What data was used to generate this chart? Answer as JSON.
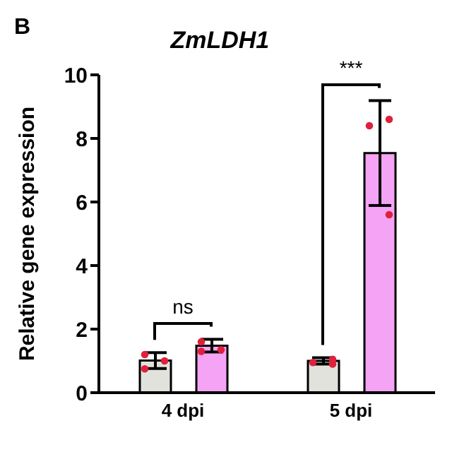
{
  "chart_data": {
    "type": "bar",
    "title": "ZmLDH1",
    "ylabel": "Relative gene expression",
    "categories": [
      "4 dpi",
      "5 dpi"
    ],
    "series": [
      {
        "color": "#e2e2dc",
        "values": [
          1.01,
          1.0
        ],
        "errors": [
          0.25,
          0.1
        ]
      },
      {
        "color": "#f5a3f5",
        "values": [
          1.48,
          7.54
        ],
        "errors": [
          0.2,
          1.65
        ]
      },
      {
        "type": "scatter",
        "color": "#e0203c",
        "marker": "circle",
        "x": [
          "4 dpi",
          "4 dpi",
          "4 dpi",
          "5 dpi",
          "5 dpi",
          "5 dpi"
        ],
        "values": [
          1.2,
          1.0,
          0.75,
          1.05,
          0.95,
          0.9
        ]
      },
      {
        "type": "scatter",
        "color": "#e0203c",
        "marker": "circle",
        "x": [
          "4 dpi",
          "4 dpi",
          "4 dpi",
          "5 dpi",
          "5 dpi",
          "5 dpi"
        ],
        "values": [
          1.6,
          1.35,
          1.3,
          8.6,
          8.4,
          5.6
        ]
      }
    ],
    "ylim": [
      0,
      10
    ],
    "yticks": [
      0,
      2,
      4,
      6,
      8,
      10
    ],
    "annotations": [
      "B",
      "ns",
      "***"
    ]
  }
}
